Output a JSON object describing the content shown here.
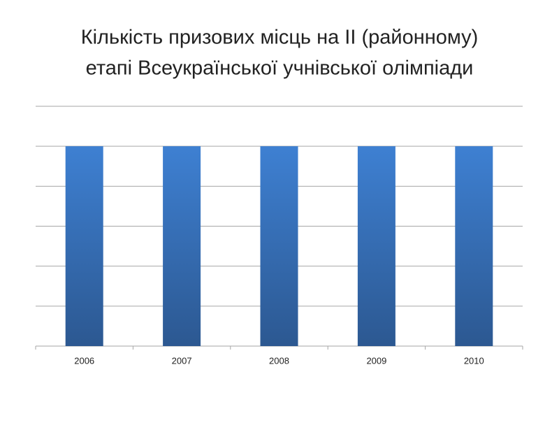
{
  "chart_data": {
    "type": "bar",
    "title": [
      "Кількість призових місць на ІІ (районному)",
      "етапі Всеукраїнської учнівської олімпіади"
    ],
    "categories": [
      "2006",
      "2007",
      "2008",
      "2009",
      "2010"
    ],
    "values": [
      5,
      5,
      5,
      5,
      5
    ],
    "color": "#3a78c6",
    "ylim": [
      0,
      6
    ],
    "yticks": [
      0,
      1,
      2,
      3,
      4,
      5,
      6
    ],
    "grid": true
  }
}
